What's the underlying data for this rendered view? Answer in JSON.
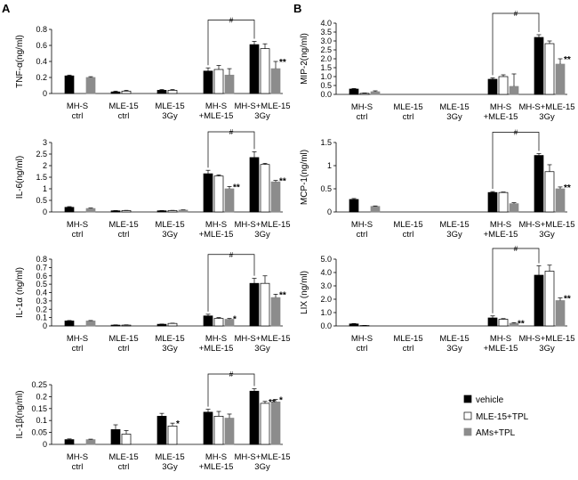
{
  "panel_labels": {
    "left": "A",
    "right": "B"
  },
  "legend": {
    "items": [
      {
        "label": "vehicle",
        "color": "#000000"
      },
      {
        "label": "MLE-15+TPL",
        "color": "#ffffff"
      },
      {
        "label": "AMs+TPL",
        "color": "#8c8c8c"
      }
    ]
  },
  "chart_data": [
    {
      "id": "tnf",
      "type": "bar",
      "ylabel": "TNF-α(ng/ml)",
      "ylim": [
        0,
        0.8
      ],
      "yticks": [
        "0",
        "0.2",
        "0.4",
        "0.6",
        "0.8"
      ],
      "categories": [
        [
          "MH-S",
          "ctrl"
        ],
        [
          "MLE-15",
          "ctrl"
        ],
        [
          "MLE-15",
          "3Gy"
        ],
        [
          "MH-S",
          "+MLE-15"
        ],
        [
          "MH-S+MLE-15",
          "3Gy"
        ]
      ],
      "series": [
        {
          "name": "vehicle",
          "values": [
            0.22,
            0.02,
            0.04,
            0.28,
            0.61
          ]
        },
        {
          "name": "MLE-15+TPL",
          "values": [
            null,
            0.03,
            0.04,
            0.3,
            0.56
          ]
        },
        {
          "name": "AMs+TPL",
          "values": [
            0.2,
            null,
            null,
            0.23,
            0.31
          ]
        }
      ],
      "errors": [
        [
          0.01,
          0.01,
          0.01,
          0.04,
          0.04
        ],
        [
          null,
          0.01,
          0.01,
          0.05,
          0.06
        ],
        [
          0.01,
          null,
          null,
          0.08,
          0.09
        ]
      ],
      "stars": [
        {
          "cat": 4,
          "series": 2,
          "text": "**"
        }
      ],
      "bracket": {
        "from": 3,
        "to": 4,
        "label": "#"
      }
    },
    {
      "id": "il6",
      "type": "bar",
      "ylabel": "IL-6(ng/ml)",
      "ylim": [
        0,
        3
      ],
      "yticks": [
        "0",
        "0.5",
        "1",
        "1.5",
        "2",
        "2.5",
        "3"
      ],
      "categories": [
        [
          "MH-S",
          "ctrl"
        ],
        [
          "MLE-15",
          "ctrl"
        ],
        [
          "MLE-15",
          "3Gy"
        ],
        [
          "MH-S",
          "+MLE-15"
        ],
        [
          "MH-S+MLE-15",
          "3Gy"
        ]
      ],
      "series": [
        {
          "name": "vehicle",
          "values": [
            0.2,
            0.05,
            0.05,
            1.65,
            2.35
          ]
        },
        {
          "name": "MLE-15+TPL",
          "values": [
            null,
            0.06,
            0.06,
            1.55,
            2.05
          ]
        },
        {
          "name": "AMs+TPL",
          "values": [
            0.15,
            null,
            0.08,
            1.0,
            1.3
          ]
        }
      ],
      "errors": [
        [
          0.03,
          0.01,
          0.01,
          0.15,
          0.25
        ],
        [
          null,
          0.01,
          0.01,
          0.05,
          0.05
        ],
        [
          0.02,
          null,
          0.01,
          0.1,
          0.06
        ]
      ],
      "stars": [
        {
          "cat": 3,
          "series": 2,
          "text": "**"
        },
        {
          "cat": 4,
          "series": 2,
          "text": "**"
        }
      ],
      "bracket": {
        "from": 3,
        "to": 4,
        "label": "#"
      }
    },
    {
      "id": "il1a",
      "type": "bar",
      "ylabel": "IL-1α (ng/ml)",
      "ylim": [
        0,
        0.8
      ],
      "yticks": [
        "0",
        "0.1",
        "0.2",
        "0.3",
        "0.4",
        "0.5",
        "0.6",
        "0.7",
        "0.8"
      ],
      "categories": [
        [
          "MH-S",
          "ctrl"
        ],
        [
          "MLE-15",
          "ctrl"
        ],
        [
          "MLE-15",
          "3Gy"
        ],
        [
          "MH-S",
          "+MLE-15"
        ],
        [
          "MH-S+MLE-15",
          "3Gy"
        ]
      ],
      "series": [
        {
          "name": "vehicle",
          "values": [
            0.06,
            0.01,
            0.02,
            0.12,
            0.51
          ]
        },
        {
          "name": "MLE-15+TPL",
          "values": [
            null,
            0.01,
            0.03,
            0.09,
            0.51
          ]
        },
        {
          "name": "AMs+TPL",
          "values": [
            0.06,
            null,
            null,
            0.08,
            0.34
          ]
        }
      ],
      "errors": [
        [
          0.005,
          0.003,
          0.003,
          0.02,
          0.06
        ],
        [
          null,
          0.003,
          0.003,
          0.01,
          0.09
        ],
        [
          0.005,
          null,
          null,
          0.01,
          0.04
        ]
      ],
      "stars": [
        {
          "cat": 3,
          "series": 2,
          "text": "*"
        },
        {
          "cat": 4,
          "series": 2,
          "text": "**"
        }
      ],
      "bracket": {
        "from": 3,
        "to": 4,
        "label": "#"
      }
    },
    {
      "id": "il1b",
      "type": "bar",
      "ylabel": "IL-1β(ng/ml)",
      "ylim": [
        0,
        0.25
      ],
      "yticks": [
        "0",
        "0.05",
        "0.1",
        "0.15",
        "0.2",
        "0.25"
      ],
      "categories": [
        [
          "MH-S",
          "ctrl"
        ],
        [
          "MLE-15",
          "ctrl"
        ],
        [
          "MLE-15",
          "3Gy"
        ],
        [
          "MH-S",
          "+MLE-15"
        ],
        [
          "MH-S+MLE-15",
          "3Gy"
        ]
      ],
      "series": [
        {
          "name": "vehicle",
          "values": [
            0.02,
            0.062,
            0.118,
            0.135,
            0.223
          ]
        },
        {
          "name": "MLE-15+TPL",
          "values": [
            null,
            0.043,
            0.077,
            0.118,
            0.172
          ]
        },
        {
          "name": "AMs+TPL",
          "values": [
            0.02,
            null,
            null,
            0.11,
            0.178
          ]
        }
      ],
      "errors": [
        [
          0.003,
          0.02,
          0.012,
          0.012,
          0.01
        ],
        [
          null,
          0.015,
          0.012,
          0.02,
          0.008
        ],
        [
          0.002,
          null,
          null,
          0.017,
          0.01
        ]
      ],
      "stars": [
        {
          "cat": 2,
          "series": 1,
          "text": "*"
        },
        {
          "cat": 4,
          "series": 1,
          "text": "**"
        },
        {
          "cat": 4,
          "series": 2,
          "text": "*"
        }
      ],
      "bracket": {
        "from": 3,
        "to": 4,
        "label": "#"
      }
    },
    {
      "id": "mip2",
      "type": "bar",
      "ylabel": "MIP-2(ng/ml)",
      "ylim": [
        0,
        4
      ],
      "yticks": [
        "0.0",
        "0.5",
        "1.0",
        "1.5",
        "2.0",
        "2.5",
        "3.0",
        "3.5",
        "4.0"
      ],
      "categories": [
        [
          "MH-S",
          "ctrl"
        ],
        [
          "MLE-15",
          "ctrl"
        ],
        [
          "MLE-15",
          "3Gy"
        ],
        [
          "MH-S",
          "+MLE-15"
        ],
        [
          "MH-S+MLE-15",
          "3Gy"
        ]
      ],
      "series": [
        {
          "name": "vehicle",
          "values": [
            0.3,
            null,
            null,
            0.85,
            3.2
          ]
        },
        {
          "name": "MLE-15+TPL",
          "values": [
            0.06,
            null,
            null,
            1.0,
            2.85
          ]
        },
        {
          "name": "AMs+TPL",
          "values": [
            0.15,
            null,
            null,
            0.45,
            1.7
          ]
        }
      ],
      "errors": [
        [
          0.03,
          null,
          null,
          0.08,
          0.15
        ],
        [
          0.02,
          null,
          null,
          0.1,
          0.15
        ],
        [
          0.05,
          null,
          null,
          0.7,
          0.3
        ]
      ],
      "stars": [
        {
          "cat": 4,
          "series": 2,
          "text": "**"
        }
      ],
      "bracket": {
        "from": 3,
        "to": 4,
        "label": "#"
      }
    },
    {
      "id": "mcp1",
      "type": "bar",
      "ylabel": "MCP-1(ng/ml)",
      "ylim": [
        0,
        1.5
      ],
      "yticks": [
        "0",
        "0.5",
        "1",
        "1.5"
      ],
      "categories": [
        [
          "MH-S",
          "ctrl"
        ],
        [
          "MLE-15",
          "ctrl"
        ],
        [
          "MLE-15",
          "3Gy"
        ],
        [
          "MH-S",
          "+MLE-15"
        ],
        [
          "MH-S+MLE-15",
          "3Gy"
        ]
      ],
      "series": [
        {
          "name": "vehicle",
          "values": [
            0.27,
            null,
            null,
            0.42,
            1.22
          ]
        },
        {
          "name": "MLE-15+TPL",
          "values": [
            null,
            null,
            null,
            0.42,
            0.87
          ]
        },
        {
          "name": "AMs+TPL",
          "values": [
            0.12,
            null,
            null,
            0.18,
            0.5
          ]
        }
      ],
      "errors": [
        [
          0.02,
          null,
          null,
          0.02,
          0.04
        ],
        [
          null,
          null,
          null,
          0.01,
          0.15
        ],
        [
          0.01,
          null,
          null,
          0.02,
          0.04
        ]
      ],
      "stars": [
        {
          "cat": 4,
          "series": 2,
          "text": "**"
        }
      ],
      "bracket": {
        "from": 3,
        "to": 4,
        "label": "#"
      }
    },
    {
      "id": "lix",
      "type": "bar",
      "ylabel": "LIX (ng/ml)",
      "ylim": [
        0,
        5
      ],
      "yticks": [
        "0.0",
        "1.0",
        "2.0",
        "3.0",
        "4.0",
        "5.0"
      ],
      "categories": [
        [
          "MH-S",
          "ctrl"
        ],
        [
          "MLE-15",
          "ctrl"
        ],
        [
          "MLE-15",
          "3Gy"
        ],
        [
          "MH-S",
          "+MLE-15"
        ],
        [
          "MH-S+MLE-15",
          "3Gy"
        ]
      ],
      "series": [
        {
          "name": "vehicle",
          "values": [
            0.15,
            null,
            null,
            0.6,
            3.8
          ]
        },
        {
          "name": "MLE-15+TPL",
          "values": [
            0.03,
            null,
            null,
            0.5,
            4.1
          ]
        },
        {
          "name": "AMs+TPL",
          "values": [
            null,
            null,
            null,
            0.2,
            1.9
          ]
        }
      ],
      "errors": [
        [
          0.03,
          null,
          null,
          0.15,
          0.7
        ],
        [
          0.01,
          null,
          null,
          0.05,
          0.45
        ],
        [
          null,
          null,
          null,
          0.05,
          0.2
        ]
      ],
      "stars": [
        {
          "cat": 3,
          "series": 2,
          "text": "**"
        },
        {
          "cat": 4,
          "series": 2,
          "text": "**"
        }
      ],
      "bracket": {
        "from": 3,
        "to": 4,
        "label": "#"
      }
    }
  ]
}
